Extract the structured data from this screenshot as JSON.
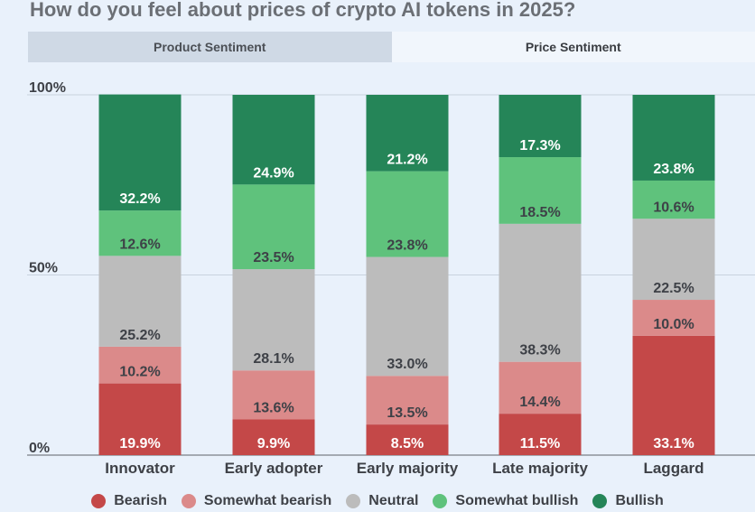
{
  "title": "How do you feel about prices of crypto AI tokens in 2025?",
  "tabs": [
    {
      "label": "Product Sentiment",
      "active": false
    },
    {
      "label": "Price Sentiment",
      "active": true
    }
  ],
  "colors": {
    "Bearish": "#c44848",
    "Somewhat bearish": "#db8a8a",
    "Neutral": "#bcbcbc",
    "Somewhat bullish": "#5fc27c",
    "Bullish": "#258558"
  },
  "chart_data": {
    "type": "bar",
    "stacked": true,
    "title": "How do you feel about prices of crypto AI tokens in 2025?",
    "categories": [
      "Innovator",
      "Early adopter",
      "Early majority",
      "Late majority",
      "Laggard"
    ],
    "series": [
      {
        "name": "Bearish",
        "values": [
          19.9,
          9.9,
          8.5,
          11.5,
          33.1
        ],
        "labels": [
          "19.9%",
          "9.9%",
          "8.5%",
          "11.5%",
          "33.1%"
        ]
      },
      {
        "name": "Somewhat bearish",
        "values": [
          10.2,
          13.6,
          13.5,
          14.4,
          10.0
        ],
        "labels": [
          "10.2%",
          "13.6%",
          "13.5%",
          "14.4%",
          "10.0%"
        ]
      },
      {
        "name": "Neutral",
        "values": [
          25.2,
          28.1,
          33.0,
          38.3,
          22.5
        ],
        "labels": [
          "25.2%",
          "28.1%",
          "33.0%",
          "38.3%",
          "22.5%"
        ]
      },
      {
        "name": "Somewhat bullish",
        "values": [
          12.6,
          23.5,
          23.8,
          18.5,
          10.6
        ],
        "labels": [
          "12.6%",
          "23.5%",
          "23.8%",
          "18.5%",
          "10.6%"
        ]
      },
      {
        "name": "Bullish",
        "values": [
          32.2,
          24.9,
          21.2,
          17.3,
          23.8
        ],
        "labels": [
          "32.2%",
          "24.9%",
          "21.2%",
          "17.3%",
          "23.8%"
        ]
      }
    ],
    "yticks": [
      0,
      50,
      100
    ],
    "ytick_labels": [
      "0%",
      "50%",
      "100%"
    ],
    "ylim": [
      0,
      100
    ],
    "xlabel": "",
    "ylabel": "",
    "legend": "bottom",
    "grid": true
  }
}
